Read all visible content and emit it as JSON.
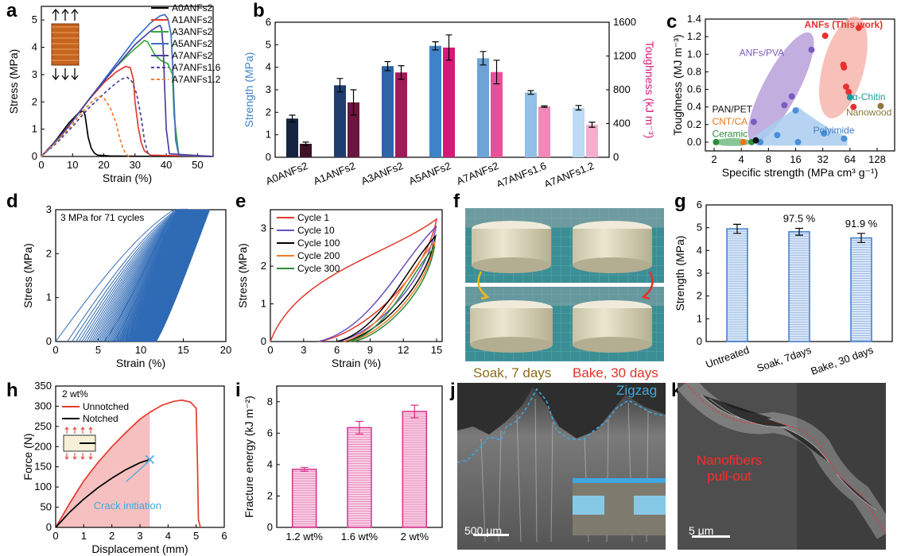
{
  "panel_labels": {
    "a": "a",
    "b": "b",
    "c": "c",
    "d": "d",
    "e": "e",
    "f": "f",
    "g": "g",
    "h": "h",
    "i": "i",
    "j": "j",
    "k": "k"
  },
  "chart_data": [
    {
      "id": "a",
      "type": "line",
      "xlabel": "Strain (%)",
      "ylabel": "Stress (MPa)",
      "xlim": [
        0,
        55
      ],
      "ylim": [
        0,
        5.5
      ],
      "xticks": [
        0,
        10,
        20,
        30,
        40,
        50
      ],
      "yticks": [
        0,
        1,
        2,
        3,
        4,
        5
      ],
      "legend_position": "top-right",
      "series": [
        {
          "name": "A0ANFs2",
          "color": "#000000",
          "dash": false,
          "x": [
            0,
            3,
            6,
            9,
            12,
            13.5,
            14,
            15,
            16,
            17,
            18,
            22,
            30,
            55
          ],
          "y": [
            0,
            0.35,
            0.8,
            1.25,
            1.6,
            1.67,
            1.5,
            0.7,
            0.3,
            0.12,
            0.05,
            0.02,
            0.01,
            0
          ]
        },
        {
          "name": "A1ANFs2",
          "color": "#e53a2e",
          "dash": false,
          "x": [
            0,
            5,
            10,
            15,
            20,
            24,
            27,
            28.5,
            29.5,
            30,
            31,
            32,
            33,
            35,
            55
          ],
          "y": [
            0,
            0.6,
            1.3,
            2.05,
            2.7,
            3.1,
            3.3,
            3.25,
            2.8,
            2.0,
            1.1,
            0.5,
            0.2,
            0.05,
            0
          ]
        },
        {
          "name": "A3ANFs2",
          "color": "#3aaa3a",
          "dash": false,
          "x": [
            0,
            6,
            12,
            18,
            24,
            29,
            32,
            33,
            34,
            35,
            36.5,
            38.5,
            40.5,
            42,
            42.5,
            44,
            55
          ],
          "y": [
            0,
            0.7,
            1.6,
            2.5,
            3.3,
            3.85,
            4.15,
            4.25,
            4.2,
            4.0,
            3.7,
            3.5,
            3.4,
            3.0,
            1.5,
            0.05,
            0
          ]
        },
        {
          "name": "A5ANFs2",
          "color": "#3b6fc4",
          "dash": false,
          "x": [
            0,
            8,
            16,
            24,
            30,
            35,
            38,
            39.5,
            40.5,
            41.5,
            42,
            42.5,
            43,
            44,
            55
          ],
          "y": [
            0,
            1.0,
            2.2,
            3.4,
            4.3,
            4.9,
            5.15,
            5.2,
            5.05,
            4.5,
            3.5,
            2.0,
            0.6,
            0.05,
            0
          ]
        },
        {
          "name": "A7ANFs2",
          "color": "#4b3fa0",
          "dash": false,
          "x": [
            0,
            8,
            16,
            24,
            30,
            35,
            37,
            38,
            38.5,
            39,
            39.5,
            40,
            41,
            55
          ],
          "y": [
            0,
            1.0,
            2.2,
            3.3,
            4.1,
            4.6,
            4.75,
            4.8,
            4.7,
            4.0,
            2.5,
            1.0,
            0.1,
            0
          ]
        },
        {
          "name": "A7ANFs1.6",
          "color": "#4b3fa0",
          "dash": true,
          "x": [
            0,
            5,
            10,
            15,
            20,
            24,
            26,
            27.5,
            29,
            30.5,
            32,
            33,
            34,
            35
          ],
          "y": [
            0,
            0.5,
            1.1,
            1.75,
            2.3,
            2.7,
            2.85,
            2.9,
            2.75,
            2.3,
            1.4,
            0.6,
            0.15,
            0
          ]
        },
        {
          "name": "A7ANFs1.2",
          "color": "#f07d2b",
          "dash": true,
          "x": [
            0,
            5,
            10,
            14,
            17,
            18.5,
            20,
            22,
            24,
            25,
            26,
            27,
            28
          ],
          "y": [
            0,
            0.55,
            1.2,
            1.75,
            2.1,
            2.2,
            2.15,
            1.8,
            1.2,
            0.7,
            0.35,
            0.1,
            0
          ]
        }
      ]
    },
    {
      "id": "b",
      "type": "bar",
      "categories": [
        "A0ANFs2",
        "A1ANFs2",
        "A3ANFs2",
        "A5ANFs2",
        "A7ANFs2",
        "A7ANFs1.6",
        "A7ANFs1.2"
      ],
      "ylabel": "Strength (MPa)",
      "y2label": "Toughness (kJ m⁻³)",
      "ylim": [
        0,
        6
      ],
      "y2lim": [
        0,
        1600
      ],
      "yticks": [
        0,
        1,
        2,
        3,
        4,
        5,
        6
      ],
      "y2ticks": [
        0,
        400,
        800,
        1200,
        1600
      ],
      "series": [
        {
          "name": "Strength",
          "axis": "left",
          "values": [
            1.72,
            3.2,
            4.05,
            4.95,
            4.4,
            2.88,
            2.2
          ],
          "errors": [
            0.15,
            0.3,
            0.2,
            0.18,
            0.3,
            0.08,
            0.1
          ],
          "colors": [
            "#16243f",
            "#1f3e6e",
            "#2e64a8",
            "#3f84c8",
            "#6ea3d8",
            "#94bfe6",
            "#bcdaf2"
          ]
        },
        {
          "name": "Toughness",
          "axis": "right",
          "values": [
            160,
            650,
            1005,
            1300,
            1010,
            600,
            385
          ],
          "errors": [
            20,
            150,
            80,
            150,
            140,
            8,
            30
          ],
          "colors": [
            "#3f1125",
            "#6b1640",
            "#a11a5a",
            "#d41a76",
            "#e9509a",
            "#ef89b8",
            "#f4aed0"
          ]
        }
      ]
    },
    {
      "id": "c",
      "type": "scatter",
      "xlabel": "Specific strength (MPa cm³ g⁻¹)",
      "ylabel": "Toughness (MJ m⁻³)",
      "xscale": "log2",
      "xlim": [
        1.6,
        200
      ],
      "ylim": [
        -0.1,
        1.4
      ],
      "xticks": [
        2,
        4,
        8,
        16,
        32,
        64,
        128
      ],
      "yticks": [
        0.0,
        0.2,
        0.4,
        0.6,
        0.8,
        1.0,
        1.2,
        1.4
      ],
      "groups": [
        {
          "name": "ANFs (This work)",
          "color": "#e8312f",
          "x": [
            34,
            54,
            55,
            58,
            62,
            70,
            80
          ],
          "y": [
            1.21,
            0.88,
            0.85,
            0.63,
            0.57,
            0.4,
            1.3
          ]
        },
        {
          "name": "ANFs/PVA",
          "color": "#7c5cc0",
          "x": [
            5.5,
            12,
            14.5,
            24
          ],
          "y": [
            0.23,
            0.42,
            0.52,
            1.05
          ]
        },
        {
          "name": "Polyimide",
          "color": "#4a8fd8",
          "x": [
            6.5,
            10,
            16,
            17,
            33,
            55
          ],
          "y": [
            0.0,
            0.08,
            0.36,
            0.0,
            0.1,
            0.04
          ]
        },
        {
          "name": "Ceramic",
          "color": "#2e8b3d",
          "x": [
            2.1,
            5.2
          ],
          "y": [
            0.0,
            0.0
          ]
        },
        {
          "name": "CNT/CA",
          "color": "#e8761e",
          "x": [
            4.2
          ],
          "y": [
            0.0
          ]
        },
        {
          "name": "PAN/PET",
          "color": "#111111",
          "x": [
            5.8
          ],
          "y": [
            0.02
          ]
        },
        {
          "name": "α-Chitin",
          "color": "#1e9aa0",
          "x": [
            64
          ],
          "y": [
            0.51
          ]
        },
        {
          "name": "Nanowood",
          "color": "#8b7a3a",
          "x": [
            140
          ],
          "y": [
            0.41
          ]
        }
      ]
    },
    {
      "id": "d",
      "type": "line",
      "xlabel": "Strain (%)",
      "ylabel": "Stress (MPa)",
      "xlim": [
        0,
        20
      ],
      "ylim": [
        0,
        3
      ],
      "xticks": [
        0,
        5,
        10,
        15,
        20
      ],
      "yticks": [
        0,
        1,
        2,
        3
      ],
      "annotation": "3 MPa for 71 cycles",
      "cycles": 71,
      "color": "#2f6ab5",
      "first_cycle": {
        "start": 0,
        "peak_strain": 13.9,
        "residual": 5.7
      },
      "last_cycle": {
        "start": 11.5,
        "peak_strain": 18.1,
        "residual": 11.8
      }
    },
    {
      "id": "e",
      "type": "line",
      "xlabel": "Strain (%)",
      "ylabel": "Stress (MPa)",
      "xlim": [
        0,
        15.5
      ],
      "ylim": [
        0,
        3.5
      ],
      "xticks": [
        0,
        3,
        6,
        9,
        12,
        15
      ],
      "yticks": [
        0,
        1,
        2,
        3
      ],
      "legend_position": "top-left",
      "series": [
        {
          "name": "Cycle 1",
          "color": "#e53a2e",
          "start": 0,
          "peak": 3.25,
          "residual": 4.3
        },
        {
          "name": "Cycle 10",
          "color": "#6b4fc0",
          "start": 4.3,
          "peak": 3.05,
          "residual": 6.0
        },
        {
          "name": "Cycle 100",
          "color": "#000000",
          "start": 6.0,
          "peak": 2.8,
          "residual": 6.6
        },
        {
          "name": "Cycle 200",
          "color": "#f07d2b",
          "start": 6.6,
          "peak": 2.65,
          "residual": 7.1
        },
        {
          "name": "Cycle 300",
          "color": "#2e8b3d",
          "start": 7.1,
          "peak": 2.5,
          "residual": 7.5
        }
      ]
    },
    {
      "id": "g",
      "type": "bar",
      "categories": [
        "Untreated",
        "Soak, 7days",
        "Bake, 30 days"
      ],
      "ylabel": "Strength (MPa)",
      "ylim": [
        0,
        6
      ],
      "yticks": [
        0,
        1,
        2,
        3,
        4,
        5,
        6
      ],
      "values": [
        4.95,
        4.82,
        4.55
      ],
      "errors": [
        0.2,
        0.15,
        0.2
      ],
      "data_labels": [
        "",
        "97.5 %",
        "91.9 %"
      ],
      "color": "#3e7ccc"
    },
    {
      "id": "h",
      "type": "line",
      "xlabel": "Displacement (mm)",
      "ylabel": "Force (N)",
      "xlim": [
        0,
        6
      ],
      "ylim": [
        0,
        350
      ],
      "xticks": [
        0,
        1,
        2,
        3,
        4,
        5,
        6
      ],
      "yticks": [
        0,
        50,
        100,
        150,
        200,
        250,
        300,
        350
      ],
      "legend_position": "top-left",
      "legend_title": "2 wt%",
      "annotation": "Crack initiation",
      "crack_x": 3.35,
      "series": [
        {
          "name": "Unnotched",
          "color": "#e53a2e",
          "x": [
            0,
            0.5,
            1,
            1.5,
            2,
            2.5,
            3,
            3.35,
            3.8,
            4.2,
            4.5,
            4.8,
            5.0,
            5.05,
            5.08,
            5.15
          ],
          "y": [
            0,
            60,
            115,
            160,
            200,
            235,
            268,
            285,
            303,
            312,
            315,
            310,
            295,
            150,
            20,
            0
          ]
        },
        {
          "name": "Notched",
          "color": "#000000",
          "x": [
            0,
            0.5,
            1,
            1.5,
            2,
            2.5,
            3,
            3.35
          ],
          "y": [
            0,
            38,
            70,
            98,
            122,
            143,
            160,
            168
          ]
        }
      ]
    },
    {
      "id": "i",
      "type": "bar",
      "categories": [
        "1.2 wt%",
        "1.6 wt%",
        "2 wt%"
      ],
      "ylabel": "Fracture energy (kJ m⁻²)",
      "ylim": [
        0,
        9
      ],
      "yticks": [
        0,
        2,
        4,
        6,
        8
      ],
      "values": [
        3.7,
        6.35,
        7.38
      ],
      "errors": [
        0.12,
        0.4,
        0.4
      ],
      "color": "#d8308c"
    }
  ],
  "photo_f": {
    "caption_left": "Soak, 7 days",
    "caption_right": "Bake, 30 days"
  },
  "image_j": {
    "label": "Zigzag",
    "scalebar": "500 μm"
  },
  "image_k": {
    "label": "Nanofibers pull-out",
    "scalebar": "5 μm"
  }
}
